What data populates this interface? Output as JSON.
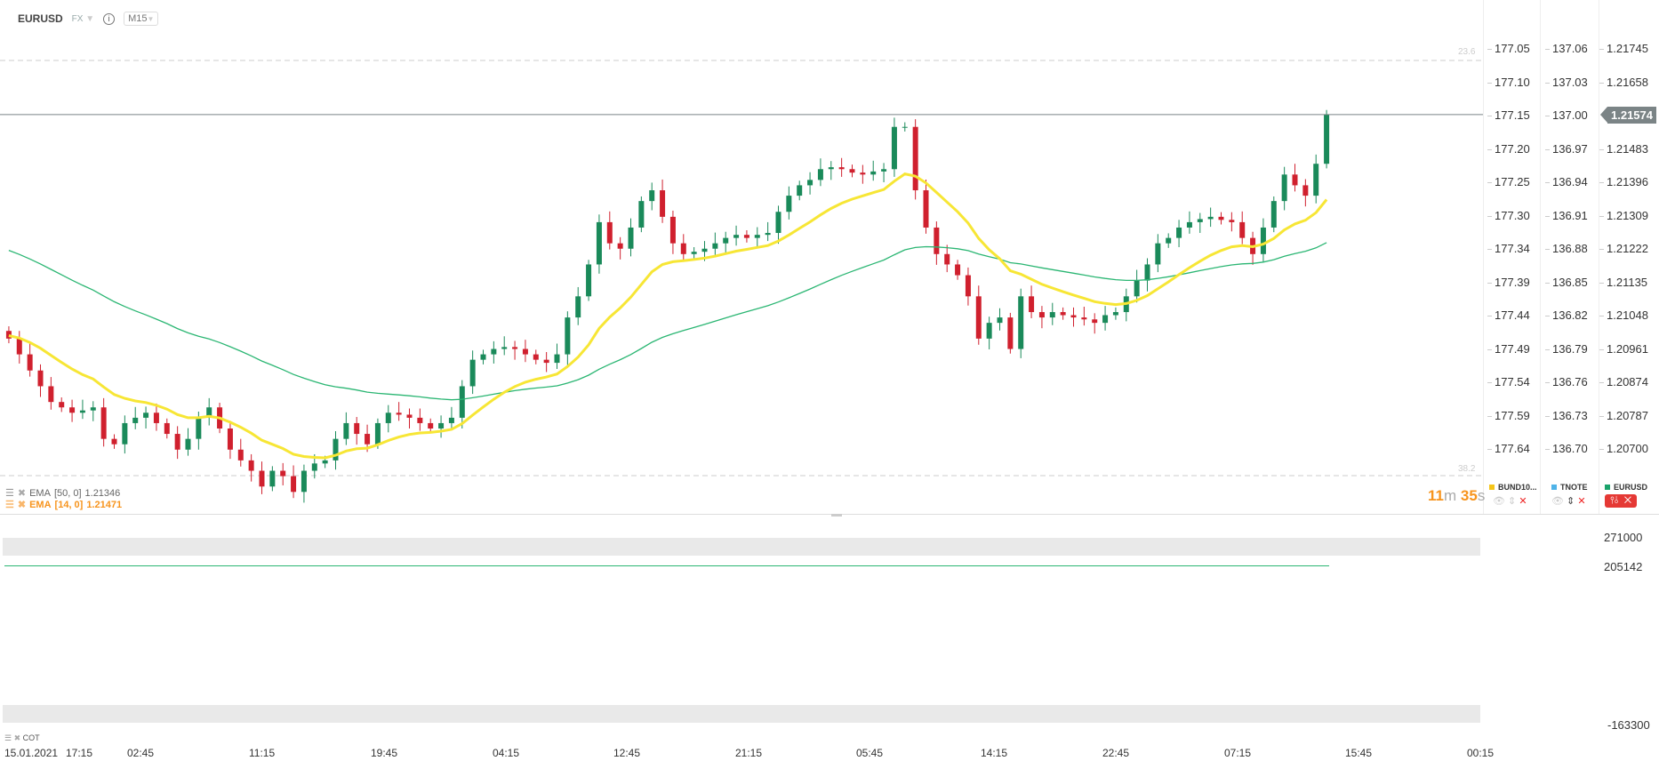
{
  "header": {
    "symbol": "EURUSD",
    "market": "FX",
    "timeframe": "M15"
  },
  "axes": {
    "bund": [
      "177.05",
      "177.10",
      "177.15",
      "177.20",
      "177.25",
      "177.30",
      "177.34",
      "177.39",
      "177.44",
      "177.49",
      "177.54",
      "177.59",
      "177.64"
    ],
    "tnote": [
      "137.06",
      "137.03",
      "137.00",
      "136.97",
      "136.94",
      "136.91",
      "136.88",
      "136.85",
      "136.82",
      "136.79",
      "136.76",
      "136.73",
      "136.70"
    ],
    "eurusd": [
      "1.21745",
      "1.21658",
      "1.21574",
      "1.21483",
      "1.21396",
      "1.21309",
      "1.21222",
      "1.21135",
      "1.21048",
      "1.20961",
      "1.20874",
      "1.20787",
      "1.20700"
    ],
    "last_price": "1.21574"
  },
  "fib": {
    "upper": "23.6",
    "lower": "38.2"
  },
  "indicators": [
    {
      "label": "EMA",
      "params": "[50, 0]",
      "value": "1.21346",
      "color": "#2bb673"
    },
    {
      "label": "EMA",
      "params": "[14, 0]",
      "value": "1.21471",
      "color": "#f7941d"
    }
  ],
  "timer": {
    "min": "11",
    "m": "m",
    "sec": "35",
    "s": "s"
  },
  "legend": [
    {
      "name": "BUND10...",
      "color": "#f5c518"
    },
    {
      "name": "TNOTE",
      "color": "#4fb3e8"
    },
    {
      "name": "EURUSD",
      "color": "#1aa36b"
    }
  ],
  "cot": {
    "label": "COT",
    "values": [
      "271000",
      "205142",
      "-163300"
    ]
  },
  "time_axis": [
    "15.01.2021",
    "17:15",
    "02:45",
    "11:15",
    "19:45",
    "04:15",
    "12:45",
    "21:15",
    "05:45",
    "14:15",
    "22:45",
    "07:15",
    "15:45",
    "00:15"
  ],
  "colors": {
    "up": "#1a8a5a",
    "down": "#d0202e",
    "ema14": "#f7e635",
    "ema50": "#2bb673"
  },
  "chart_data": {
    "type": "candlestick",
    "symbol": "EURUSD",
    "ylim": [
      1.207,
      1.21745
    ],
    "closes": [
      1.20991,
      1.2095,
      1.20908,
      1.20867,
      1.20826,
      1.20812,
      1.20798,
      1.20804,
      1.20812,
      1.2073,
      1.20716,
      1.20771,
      1.20785,
      1.20798,
      1.20771,
      1.20743,
      1.20702,
      1.2073,
      1.20785,
      1.20812,
      1.20757,
      1.20702,
      1.20674,
      1.20647,
      1.20606,
      1.20647,
      1.20633,
      1.20592,
      1.20647,
      1.20666,
      1.20674,
      1.2073,
      1.20771,
      1.20743,
      1.20716,
      1.20771,
      1.20798,
      1.20793,
      1.20785,
      1.20771,
      1.20757,
      1.20771,
      1.20785,
      1.20867,
      1.20936,
      1.2095,
      1.20964,
      1.20969,
      1.20964,
      1.2095,
      1.20936,
      1.20928,
      1.2095,
      1.21046,
      1.21101,
      1.21184,
      1.21294,
      1.21239,
      1.21225,
      1.2128,
      1.21349,
      1.21377,
      1.21308,
      1.21239,
      1.21211,
      1.21217,
      1.21225,
      1.21239,
      1.21253,
      1.21261,
      1.21253,
      1.21261,
      1.21266,
      1.21321,
      1.21363,
      1.2139,
      1.21404,
      1.21432,
      1.21437,
      1.21432,
      1.21423,
      1.21418,
      1.21426,
      1.21432,
      1.21542,
      1.21542,
      1.21377,
      1.2128,
      1.21211,
      1.21184,
      1.21156,
      1.21101,
      1.20991,
      1.21032,
      1.21046,
      1.20964,
      1.21101,
      1.2106,
      1.21046,
      1.2106,
      1.21052,
      1.21046,
      1.21041,
      1.21032,
      1.21052,
      1.2106,
      1.21101,
      1.21142,
      1.21184,
      1.21239,
      1.21253,
      1.2128,
      1.21294,
      1.21302,
      1.21308,
      1.213,
      1.21294,
      1.21253,
      1.21211,
      1.2128,
      1.21349,
      1.21418,
      1.2139,
      1.21363,
      1.21446,
      1.21574
    ],
    "ema_periods": [
      14,
      50
    ]
  }
}
